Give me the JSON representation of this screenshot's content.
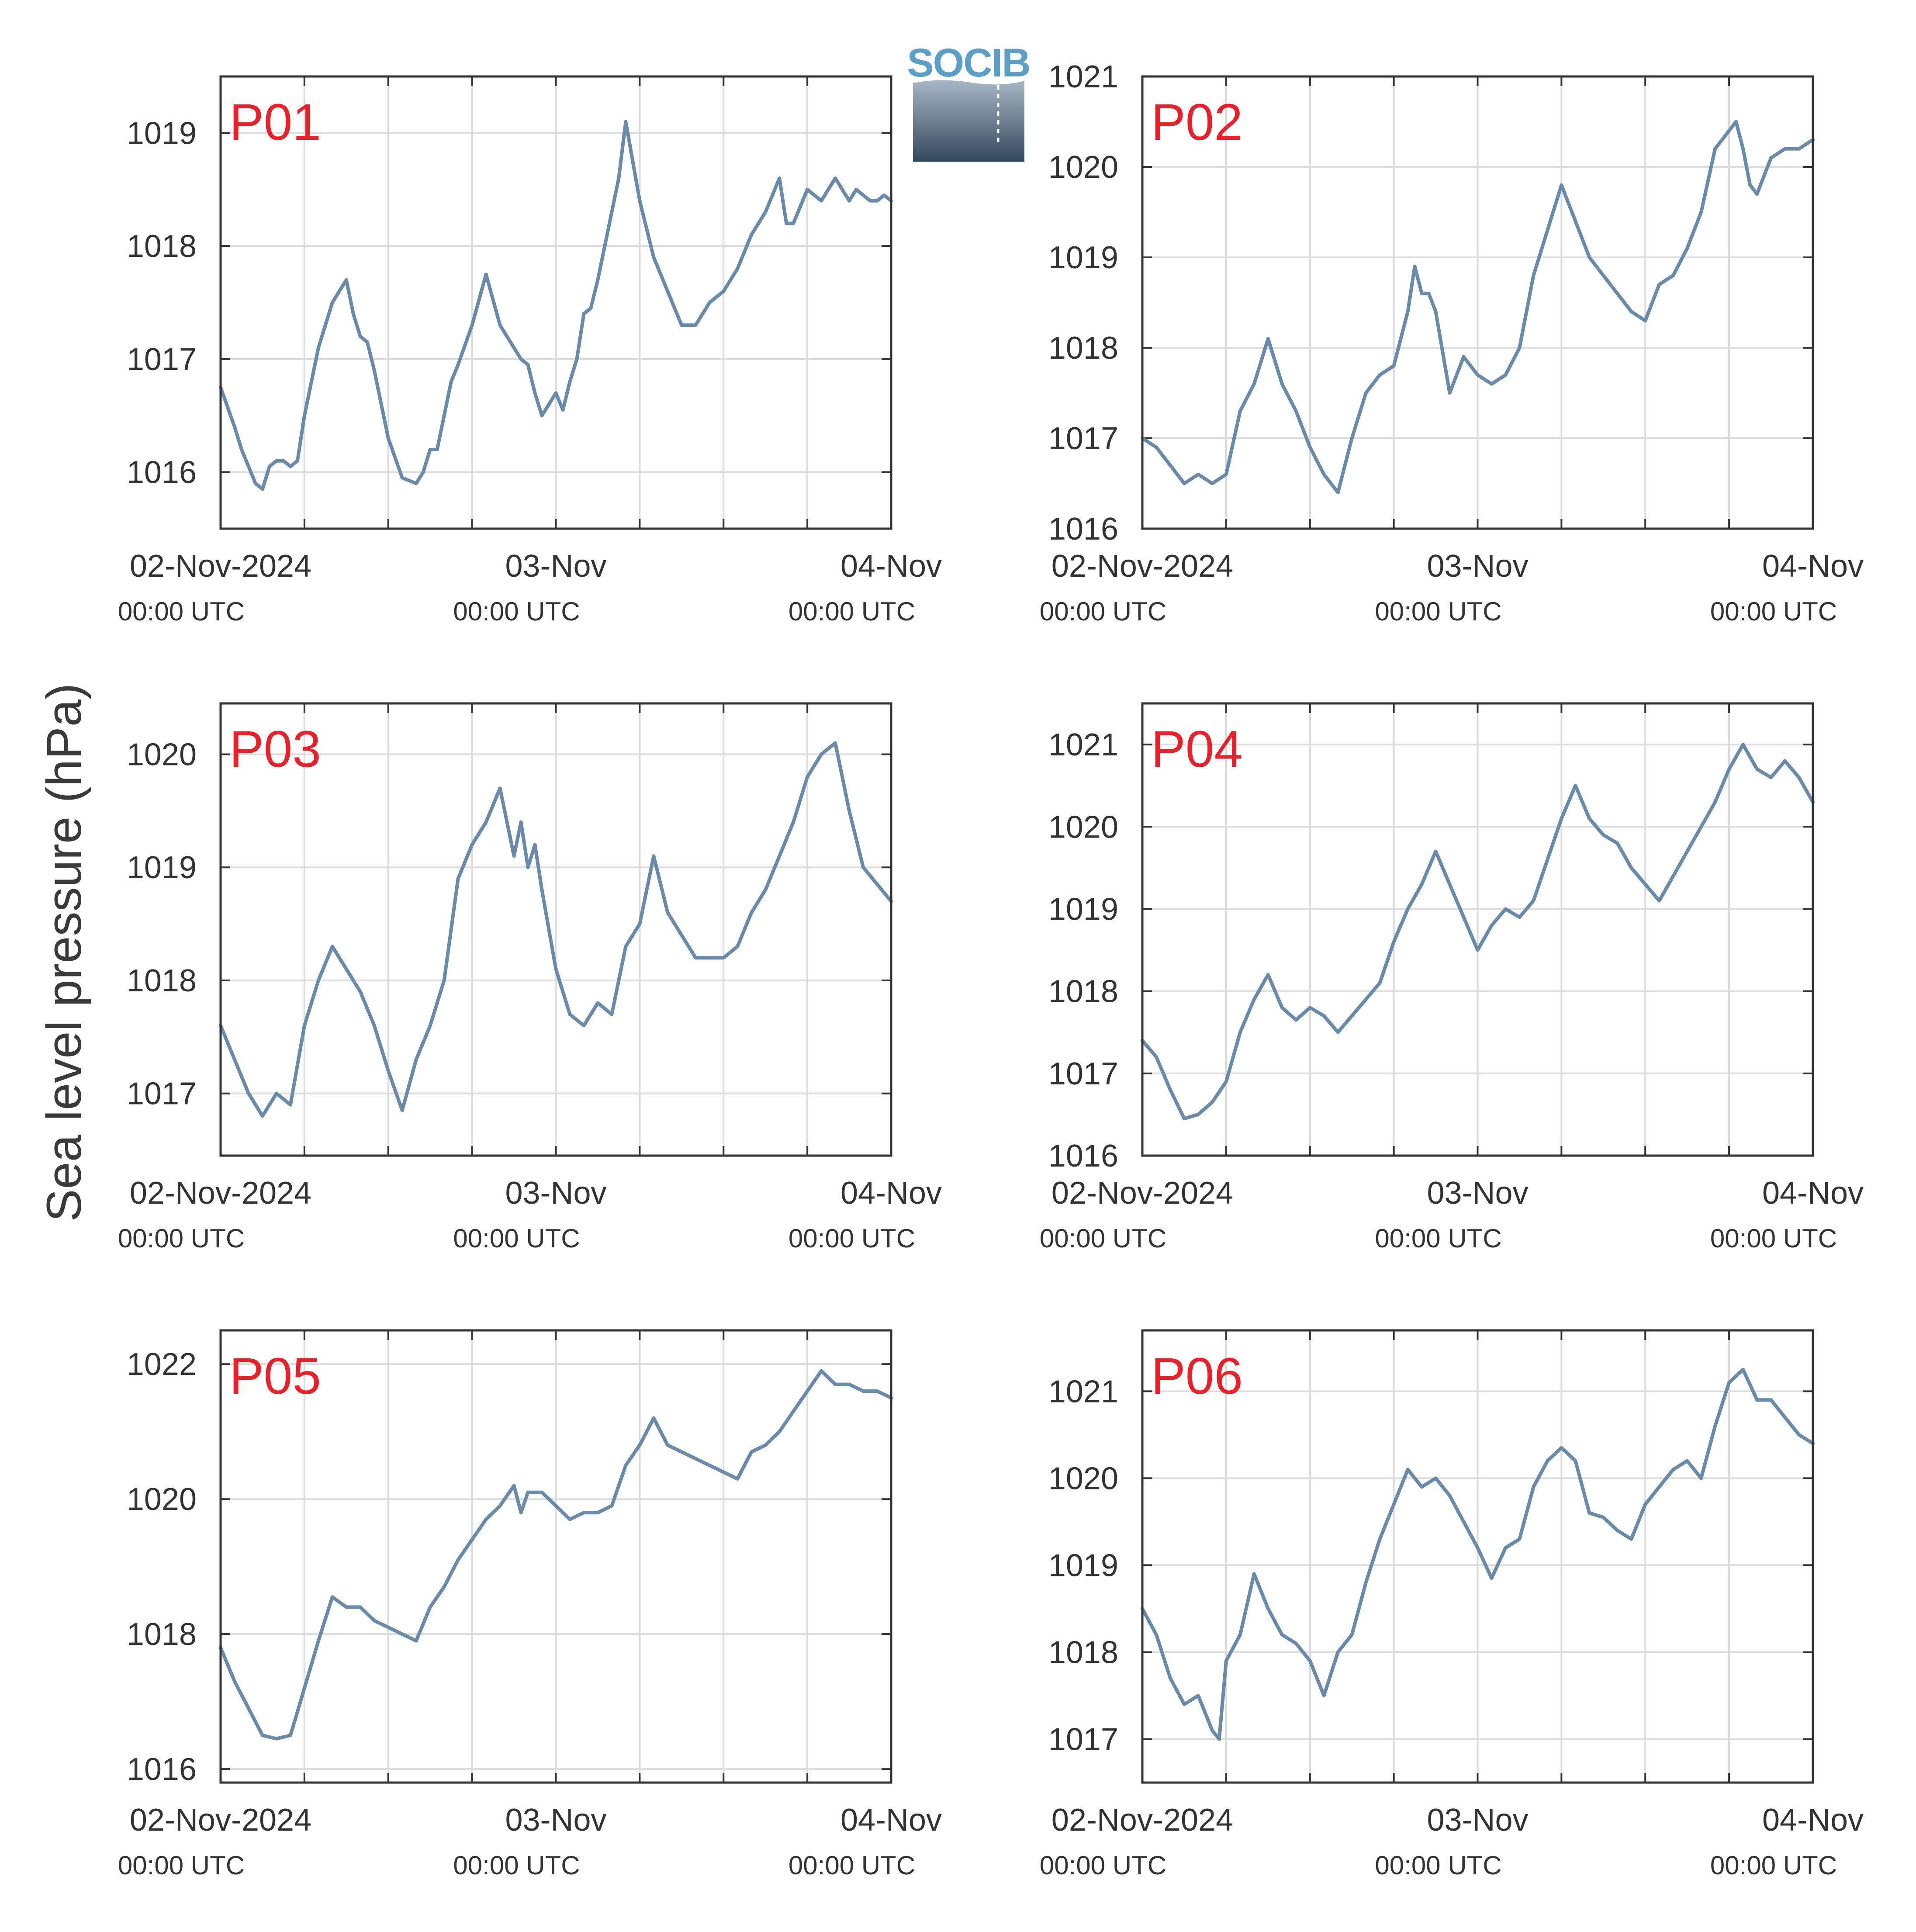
{
  "figure": {
    "ylabel": "Sea level pressure (hPa)",
    "logo_text": "SOCIB",
    "colors": {
      "line": "#6a8aaa",
      "title": "#e8202a",
      "grid": "#dcdcdc",
      "axis": "#333333"
    }
  },
  "chart_data": [
    {
      "type": "line",
      "title": "P01",
      "xlabel": "",
      "ylabel": "Sea level pressure (hPa)",
      "xlim": [
        0,
        48
      ],
      "ylim": [
        1015.5,
        1019.5
      ],
      "yticks": [
        "1016",
        "1017",
        "1018",
        "1019"
      ],
      "xticks": [
        {
          "label": "02-Nov-2024",
          "sub": "00:00 UTC",
          "x": 0
        },
        {
          "label": "03-Nov",
          "sub": "00:00 UTC",
          "x": 24
        },
        {
          "label": "04-Nov",
          "sub": "00:00 UTC",
          "x": 48
        }
      ],
      "grid": true,
      "series": [
        {
          "x": [
            0,
            1,
            1.5,
            2,
            2.5,
            3,
            3.5,
            4,
            4.5,
            5,
            5.5,
            6,
            7,
            8,
            9,
            9.5,
            10,
            10.5,
            11,
            11.5,
            12,
            13,
            14,
            14.5,
            15,
            15.5,
            16,
            16.5,
            17,
            18,
            19,
            20,
            20.5,
            21,
            21.5,
            22,
            22.5,
            23,
            23.5,
            24,
            24.5,
            25,
            25.5,
            26,
            26.5,
            27,
            27.5,
            28,
            28.5,
            29,
            30,
            31,
            32,
            33,
            34,
            35,
            36,
            37,
            38,
            39,
            40,
            40.5,
            41,
            42,
            43,
            44,
            45,
            45.5,
            46,
            46.5,
            47,
            47.5,
            48
          ],
          "y": [
            1016.75,
            1016.4,
            1016.2,
            1016.05,
            1015.9,
            1015.85,
            1016.05,
            1016.1,
            1016.1,
            1016.05,
            1016.1,
            1016.5,
            1017.1,
            1017.5,
            1017.7,
            1017.4,
            1017.2,
            1017.15,
            1016.9,
            1016.6,
            1016.3,
            1015.95,
            1015.9,
            1016.0,
            1016.2,
            1016.2,
            1016.5,
            1016.8,
            1016.95,
            1017.3,
            1017.75,
            1017.3,
            1017.2,
            1017.1,
            1017.0,
            1016.95,
            1016.7,
            1016.5,
            1016.6,
            1016.7,
            1016.55,
            1016.8,
            1017.0,
            1017.4,
            1017.45,
            1017.7,
            1018.0,
            1018.3,
            1018.6,
            1019.1,
            1018.4,
            1017.9,
            1017.6,
            1017.3,
            1017.3,
            1017.5,
            1017.6,
            1017.8,
            1018.1,
            1018.3,
            1018.6,
            1018.2,
            1018.2,
            1018.5,
            1018.4,
            1018.6,
            1018.4,
            1018.5,
            1018.45,
            1018.4,
            1018.4,
            1018.45,
            1018.4
          ]
        }
      ]
    },
    {
      "type": "line",
      "title": "P02",
      "xlabel": "",
      "ylabel": "Sea level pressure (hPa)",
      "xlim": [
        0,
        48
      ],
      "ylim": [
        1016,
        1021
      ],
      "yticks": [
        "1016",
        "1017",
        "1018",
        "1019",
        "1020",
        "1021"
      ],
      "xticks": [
        {
          "label": "02-Nov-2024",
          "sub": "00:00 UTC",
          "x": 0
        },
        {
          "label": "03-Nov",
          "sub": "00:00 UTC",
          "x": 24
        },
        {
          "label": "04-Nov",
          "sub": "00:00 UTC",
          "x": 48
        }
      ],
      "grid": true,
      "series": [
        {
          "x": [
            0,
            1,
            2,
            3,
            4,
            5,
            6,
            7,
            8,
            9,
            10,
            11,
            12,
            13,
            14,
            15,
            16,
            17,
            18,
            19,
            19.5,
            20,
            20.5,
            21,
            22,
            23,
            24,
            25,
            26,
            27,
            28,
            29,
            30,
            31,
            32,
            33,
            34,
            35,
            36,
            37,
            38,
            39,
            40,
            41,
            42,
            42.5,
            43,
            43.5,
            44,
            45,
            46,
            47,
            48
          ],
          "y": [
            1017.0,
            1016.9,
            1016.7,
            1016.5,
            1016.6,
            1016.5,
            1016.6,
            1017.3,
            1017.6,
            1018.1,
            1017.6,
            1017.3,
            1016.9,
            1016.6,
            1016.4,
            1017.0,
            1017.5,
            1017.7,
            1017.8,
            1018.4,
            1018.9,
            1018.6,
            1018.6,
            1018.4,
            1017.5,
            1017.9,
            1017.7,
            1017.6,
            1017.7,
            1018.0,
            1018.8,
            1019.3,
            1019.8,
            1019.4,
            1019.0,
            1018.8,
            1018.6,
            1018.4,
            1018.3,
            1018.7,
            1018.8,
            1019.1,
            1019.5,
            1020.2,
            1020.4,
            1020.5,
            1020.2,
            1019.8,
            1019.7,
            1020.1,
            1020.2,
            1020.2,
            1020.3
          ]
        }
      ]
    },
    {
      "type": "line",
      "title": "P03",
      "xlabel": "",
      "ylabel": "Sea level pressure (hPa)",
      "xlim": [
        0,
        48
      ],
      "ylim": [
        1016.45,
        1020.45
      ],
      "yticks": [
        "1017",
        "1018",
        "1019",
        "1020"
      ],
      "xticks": [
        {
          "label": "02-Nov-2024",
          "sub": "00:00 UTC",
          "x": 0
        },
        {
          "label": "03-Nov",
          "sub": "00:00 UTC",
          "x": 24
        },
        {
          "label": "04-Nov",
          "sub": "00:00 UTC",
          "x": 48
        }
      ],
      "grid": true,
      "series": [
        {
          "x": [
            0,
            1,
            2,
            3,
            4,
            5,
            6,
            7,
            8,
            9,
            10,
            11,
            12,
            13,
            14,
            15,
            16,
            17,
            18,
            19,
            20,
            21,
            21.5,
            22,
            22.5,
            23,
            24,
            25,
            26,
            27,
            28,
            29,
            30,
            31,
            32,
            33,
            34,
            35,
            36,
            37,
            38,
            39,
            40,
            41,
            42,
            43,
            44,
            44.5,
            45,
            46,
            47,
            48
          ],
          "y": [
            1017.6,
            1017.3,
            1017.0,
            1016.8,
            1017.0,
            1016.9,
            1017.6,
            1018.0,
            1018.3,
            1018.1,
            1017.9,
            1017.6,
            1017.2,
            1016.85,
            1017.3,
            1017.6,
            1018.0,
            1018.9,
            1019.2,
            1019.4,
            1019.7,
            1019.1,
            1019.4,
            1019.0,
            1019.2,
            1018.8,
            1018.1,
            1017.7,
            1017.6,
            1017.8,
            1017.7,
            1018.3,
            1018.5,
            1019.1,
            1018.6,
            1018.4,
            1018.2,
            1018.2,
            1018.2,
            1018.3,
            1018.6,
            1018.8,
            1019.1,
            1019.4,
            1019.8,
            1020.0,
            1020.1,
            1019.8,
            1019.5,
            1019.0,
            1018.85,
            1018.7
          ]
        }
      ]
    },
    {
      "type": "line",
      "title": "P04",
      "xlabel": "",
      "ylabel": "Sea level pressure (hPa)",
      "xlim": [
        0,
        48
      ],
      "ylim": [
        1016,
        1021.5
      ],
      "yticks": [
        "1016",
        "1017",
        "1018",
        "1019",
        "1020",
        "1021"
      ],
      "xticks": [
        {
          "label": "02-Nov-2024",
          "sub": "00:00 UTC",
          "x": 0
        },
        {
          "label": "03-Nov",
          "sub": "00:00 UTC",
          "x": 24
        },
        {
          "label": "04-Nov",
          "sub": "00:00 UTC",
          "x": 48
        }
      ],
      "grid": true,
      "series": [
        {
          "x": [
            0,
            1,
            2,
            3,
            4,
            5,
            6,
            7,
            8,
            9,
            10,
            11,
            12,
            13,
            14,
            15,
            16,
            17,
            18,
            19,
            20,
            21,
            22,
            23,
            24,
            25,
            26,
            27,
            28,
            29,
            30,
            31,
            32,
            33,
            34,
            35,
            36,
            37,
            38,
            39,
            40,
            41,
            42,
            43,
            44,
            45,
            46,
            47,
            48
          ],
          "y": [
            1017.4,
            1017.2,
            1016.8,
            1016.45,
            1016.5,
            1016.65,
            1016.9,
            1017.5,
            1017.9,
            1018.2,
            1017.8,
            1017.65,
            1017.8,
            1017.7,
            1017.5,
            1017.7,
            1017.9,
            1018.1,
            1018.6,
            1019.0,
            1019.3,
            1019.7,
            1019.3,
            1018.9,
            1018.5,
            1018.8,
            1019.0,
            1018.9,
            1019.1,
            1019.6,
            1020.1,
            1020.5,
            1020.1,
            1019.9,
            1019.8,
            1019.5,
            1019.3,
            1019.1,
            1019.4,
            1019.7,
            1020.0,
            1020.3,
            1020.7,
            1021.0,
            1020.7,
            1020.6,
            1020.8,
            1020.6,
            1020.3
          ]
        }
      ]
    },
    {
      "type": "line",
      "title": "P05",
      "xlabel": "",
      "ylabel": "Sea level pressure (hPa)",
      "xlim": [
        0,
        48
      ],
      "ylim": [
        1015.8,
        1022.5
      ],
      "yticks": [
        "1016",
        "1018",
        "1020",
        "1022"
      ],
      "xticks": [
        {
          "label": "02-Nov-2024",
          "sub": "00:00 UTC",
          "x": 0
        },
        {
          "label": "03-Nov",
          "sub": "00:00 UTC",
          "x": 24
        },
        {
          "label": "04-Nov",
          "sub": "00:00 UTC",
          "x": 48
        }
      ],
      "grid": true,
      "series": [
        {
          "x": [
            0,
            1,
            2,
            3,
            4,
            5,
            6,
            7,
            8,
            9,
            10,
            11,
            12,
            13,
            14,
            15,
            16,
            17,
            18,
            19,
            20,
            21,
            21.5,
            22,
            23,
            24,
            25,
            26,
            27,
            28,
            29,
            30,
            31,
            32,
            33,
            34,
            35,
            36,
            37,
            38,
            39,
            40,
            41,
            42,
            43,
            44,
            45,
            46,
            47,
            48
          ],
          "y": [
            1017.8,
            1017.3,
            1016.9,
            1016.5,
            1016.45,
            1016.5,
            1017.2,
            1017.9,
            1018.55,
            1018.4,
            1018.4,
            1018.2,
            1018.1,
            1018.0,
            1017.9,
            1018.4,
            1018.7,
            1019.1,
            1019.4,
            1019.7,
            1019.9,
            1020.2,
            1019.8,
            1020.1,
            1020.1,
            1019.9,
            1019.7,
            1019.8,
            1019.8,
            1019.9,
            1020.5,
            1020.8,
            1021.2,
            1020.8,
            1020.7,
            1020.6,
            1020.5,
            1020.4,
            1020.3,
            1020.7,
            1020.8,
            1021.0,
            1021.3,
            1021.6,
            1021.9,
            1021.7,
            1021.7,
            1021.6,
            1021.6,
            1021.5
          ]
        }
      ]
    },
    {
      "type": "line",
      "title": "P06",
      "xlabel": "",
      "ylabel": "Sea level pressure (hPa)",
      "xlim": [
        0,
        48
      ],
      "ylim": [
        1016.5,
        1021.7
      ],
      "yticks": [
        "1017",
        "1018",
        "1019",
        "1020",
        "1021"
      ],
      "xticks": [
        {
          "label": "02-Nov-2024",
          "sub": "00:00 UTC",
          "x": 0
        },
        {
          "label": "03-Nov",
          "sub": "00:00 UTC",
          "x": 24
        },
        {
          "label": "04-Nov",
          "sub": "00:00 UTC",
          "x": 48
        }
      ],
      "grid": true,
      "series": [
        {
          "x": [
            0,
            1,
            2,
            3,
            4,
            5,
            5.5,
            6,
            7,
            8,
            9,
            10,
            11,
            12,
            13,
            14,
            15,
            16,
            17,
            18,
            19,
            20,
            21,
            22,
            23,
            24,
            25,
            26,
            27,
            28,
            29,
            30,
            31,
            32,
            33,
            34,
            35,
            36,
            37,
            38,
            39,
            40,
            41,
            42,
            43,
            44,
            45,
            46,
            47,
            48
          ],
          "y": [
            1018.5,
            1018.2,
            1017.7,
            1017.4,
            1017.5,
            1017.1,
            1017.0,
            1017.9,
            1018.2,
            1018.9,
            1018.5,
            1018.2,
            1018.1,
            1017.9,
            1017.5,
            1018.0,
            1018.2,
            1018.8,
            1019.3,
            1019.7,
            1020.1,
            1019.9,
            1020.0,
            1019.8,
            1019.5,
            1019.2,
            1018.85,
            1019.2,
            1019.3,
            1019.9,
            1020.2,
            1020.35,
            1020.2,
            1019.6,
            1019.55,
            1019.4,
            1019.3,
            1019.7,
            1019.9,
            1020.1,
            1020.2,
            1020.0,
            1020.6,
            1021.1,
            1021.25,
            1020.9,
            1020.9,
            1020.7,
            1020.5,
            1020.4
          ]
        }
      ]
    }
  ]
}
